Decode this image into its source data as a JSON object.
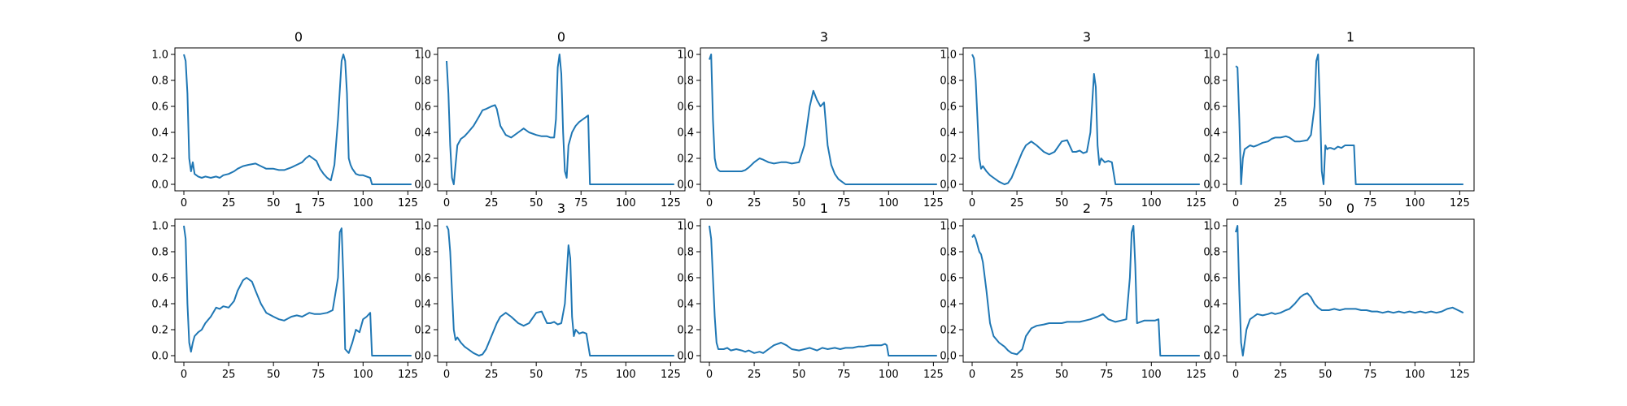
{
  "chart_data": [
    {
      "type": "line",
      "title": "0",
      "xlim": [
        0,
        127
      ],
      "ylim": [
        0,
        1
      ],
      "xticks": [
        0,
        25,
        50,
        75,
        100,
        125
      ],
      "yticks": [
        0.0,
        0.2,
        0.4,
        0.6,
        0.8,
        1.0
      ],
      "x": [
        0,
        1,
        2,
        3,
        4,
        5,
        6,
        8,
        10,
        12,
        15,
        18,
        20,
        22,
        25,
        28,
        30,
        33,
        36,
        40,
        43,
        46,
        50,
        53,
        56,
        60,
        63,
        66,
        68,
        70,
        72,
        74,
        76,
        78,
        80,
        82,
        84,
        86,
        88,
        89,
        90,
        91,
        92,
        93,
        94,
        95,
        96,
        98,
        100,
        102,
        104,
        105,
        106,
        110,
        115,
        120,
        127
      ],
      "values": [
        1.0,
        0.95,
        0.7,
        0.2,
        0.1,
        0.17,
        0.08,
        0.06,
        0.05,
        0.06,
        0.05,
        0.06,
        0.05,
        0.07,
        0.08,
        0.1,
        0.12,
        0.14,
        0.15,
        0.16,
        0.14,
        0.12,
        0.12,
        0.11,
        0.11,
        0.13,
        0.15,
        0.17,
        0.2,
        0.22,
        0.2,
        0.18,
        0.12,
        0.08,
        0.05,
        0.03,
        0.15,
        0.5,
        0.95,
        1.0,
        0.95,
        0.7,
        0.2,
        0.15,
        0.12,
        0.1,
        0.08,
        0.07,
        0.07,
        0.06,
        0.05,
        0.0,
        0.0,
        0.0,
        0.0,
        0.0,
        0.0
      ]
    },
    {
      "type": "line",
      "title": "0",
      "xlim": [
        0,
        127
      ],
      "ylim": [
        0,
        1
      ],
      "xticks": [
        0,
        25,
        50,
        75,
        100,
        125
      ],
      "yticks": [
        0.0,
        0.2,
        0.4,
        0.6,
        0.8,
        1.0
      ],
      "x": [
        0,
        1,
        2,
        3,
        4,
        5,
        6,
        8,
        10,
        12,
        15,
        18,
        20,
        22,
        25,
        27,
        28,
        30,
        33,
        36,
        40,
        43,
        46,
        50,
        53,
        56,
        58,
        60,
        61,
        62,
        63,
        64,
        65,
        66,
        67,
        68,
        70,
        72,
        74,
        76,
        78,
        79,
        80,
        85,
        90,
        100,
        110,
        120,
        127
      ],
      "values": [
        0.95,
        0.7,
        0.3,
        0.05,
        0.0,
        0.15,
        0.3,
        0.35,
        0.37,
        0.4,
        0.45,
        0.52,
        0.57,
        0.58,
        0.6,
        0.61,
        0.58,
        0.45,
        0.38,
        0.36,
        0.4,
        0.43,
        0.4,
        0.38,
        0.37,
        0.37,
        0.36,
        0.36,
        0.5,
        0.9,
        1.0,
        0.85,
        0.4,
        0.1,
        0.05,
        0.3,
        0.4,
        0.45,
        0.48,
        0.5,
        0.52,
        0.53,
        0.0,
        0.0,
        0.0,
        0.0,
        0.0,
        0.0,
        0.0
      ]
    },
    {
      "type": "line",
      "title": "3",
      "xlim": [
        0,
        127
      ],
      "ylim": [
        0,
        1
      ],
      "xticks": [
        0,
        25,
        50,
        75,
        100,
        125
      ],
      "yticks": [
        0.0,
        0.2,
        0.4,
        0.6,
        0.8,
        1.0
      ],
      "x": [
        0,
        1,
        2,
        3,
        4,
        5,
        6,
        8,
        10,
        12,
        15,
        18,
        20,
        22,
        25,
        28,
        30,
        33,
        36,
        40,
        43,
        46,
        50,
        53,
        56,
        58,
        60,
        62,
        64,
        66,
        68,
        70,
        72,
        74,
        76,
        78,
        80,
        85,
        90,
        100,
        110,
        120,
        127
      ],
      "values": [
        0.96,
        1.0,
        0.5,
        0.2,
        0.13,
        0.11,
        0.1,
        0.1,
        0.1,
        0.1,
        0.1,
        0.1,
        0.11,
        0.13,
        0.17,
        0.2,
        0.19,
        0.17,
        0.16,
        0.17,
        0.17,
        0.16,
        0.17,
        0.3,
        0.6,
        0.72,
        0.65,
        0.6,
        0.63,
        0.3,
        0.15,
        0.08,
        0.04,
        0.02,
        0.0,
        0.0,
        0.0,
        0.0,
        0.0,
        0.0,
        0.0,
        0.0,
        0.0
      ]
    },
    {
      "type": "line",
      "title": "3",
      "xlim": [
        0,
        127
      ],
      "ylim": [
        0,
        1
      ],
      "xticks": [
        0,
        25,
        50,
        75,
        100,
        125
      ],
      "yticks": [
        0.0,
        0.2,
        0.4,
        0.6,
        0.8,
        1.0
      ],
      "x": [
        0,
        1,
        2,
        3,
        4,
        5,
        6,
        8,
        10,
        12,
        15,
        18,
        20,
        22,
        25,
        28,
        30,
        33,
        36,
        40,
        43,
        46,
        50,
        53,
        56,
        58,
        60,
        62,
        64,
        66,
        68,
        69,
        70,
        71,
        72,
        74,
        76,
        78,
        80,
        82,
        85,
        90,
        100,
        110,
        120,
        127
      ],
      "values": [
        1.0,
        0.97,
        0.8,
        0.5,
        0.2,
        0.12,
        0.14,
        0.1,
        0.07,
        0.05,
        0.02,
        0.0,
        0.01,
        0.05,
        0.15,
        0.25,
        0.3,
        0.33,
        0.3,
        0.25,
        0.23,
        0.25,
        0.33,
        0.34,
        0.25,
        0.25,
        0.26,
        0.24,
        0.25,
        0.4,
        0.85,
        0.75,
        0.3,
        0.15,
        0.2,
        0.17,
        0.18,
        0.17,
        0.0,
        0.0,
        0.0,
        0.0,
        0.0,
        0.0,
        0.0,
        0.0
      ]
    },
    {
      "type": "line",
      "title": "1",
      "xlim": [
        0,
        127
      ],
      "ylim": [
        0,
        1
      ],
      "xticks": [
        0,
        25,
        50,
        75,
        100,
        125
      ],
      "yticks": [
        0.0,
        0.2,
        0.4,
        0.6,
        0.8,
        1.0
      ],
      "x": [
        0,
        1,
        2,
        3,
        4,
        5,
        6,
        8,
        10,
        12,
        15,
        18,
        20,
        22,
        25,
        28,
        30,
        33,
        36,
        40,
        42,
        44,
        45,
        46,
        47,
        48,
        49,
        50,
        51,
        52,
        53,
        55,
        57,
        59,
        61,
        63,
        65,
        66,
        67,
        70,
        80,
        90,
        100,
        110,
        120,
        127
      ],
      "values": [
        0.91,
        0.9,
        0.5,
        0.0,
        0.2,
        0.27,
        0.28,
        0.3,
        0.29,
        0.3,
        0.32,
        0.33,
        0.35,
        0.36,
        0.36,
        0.37,
        0.36,
        0.33,
        0.33,
        0.34,
        0.38,
        0.6,
        0.95,
        1.0,
        0.6,
        0.1,
        0.0,
        0.3,
        0.27,
        0.28,
        0.28,
        0.27,
        0.29,
        0.28,
        0.3,
        0.3,
        0.3,
        0.3,
        0.0,
        0.0,
        0.0,
        0.0,
        0.0,
        0.0,
        0.0,
        0.0
      ]
    },
    {
      "type": "line",
      "title": "1",
      "xlim": [
        0,
        127
      ],
      "ylim": [
        0,
        1
      ],
      "xticks": [
        0,
        25,
        50,
        75,
        100,
        125
      ],
      "yticks": [
        0.0,
        0.2,
        0.4,
        0.6,
        0.8,
        1.0
      ],
      "x": [
        0,
        1,
        2,
        3,
        4,
        5,
        6,
        8,
        10,
        12,
        15,
        18,
        20,
        22,
        25,
        28,
        30,
        33,
        35,
        38,
        40,
        43,
        46,
        50,
        53,
        56,
        60,
        63,
        66,
        70,
        73,
        76,
        80,
        83,
        86,
        87,
        88,
        89,
        90,
        92,
        94,
        96,
        98,
        100,
        102,
        104,
        105,
        106,
        110,
        115,
        120,
        127
      ],
      "values": [
        1.0,
        0.9,
        0.4,
        0.1,
        0.03,
        0.1,
        0.15,
        0.18,
        0.2,
        0.25,
        0.3,
        0.37,
        0.36,
        0.38,
        0.37,
        0.42,
        0.5,
        0.58,
        0.6,
        0.57,
        0.5,
        0.4,
        0.33,
        0.3,
        0.28,
        0.27,
        0.3,
        0.31,
        0.3,
        0.33,
        0.32,
        0.32,
        0.33,
        0.35,
        0.6,
        0.95,
        0.98,
        0.6,
        0.05,
        0.02,
        0.1,
        0.2,
        0.18,
        0.28,
        0.3,
        0.33,
        0.0,
        0.0,
        0.0,
        0.0,
        0.0,
        0.0
      ]
    },
    {
      "type": "line",
      "title": "3",
      "xlim": [
        0,
        127
      ],
      "ylim": [
        0,
        1
      ],
      "xticks": [
        0,
        25,
        50,
        75,
        100,
        125
      ],
      "yticks": [
        0.0,
        0.2,
        0.4,
        0.6,
        0.8,
        1.0
      ],
      "x": [
        0,
        1,
        2,
        3,
        4,
        5,
        6,
        8,
        10,
        12,
        15,
        18,
        20,
        22,
        25,
        28,
        30,
        33,
        36,
        40,
        43,
        46,
        50,
        53,
        56,
        58,
        60,
        62,
        64,
        66,
        68,
        69,
        70,
        71,
        72,
        74,
        76,
        78,
        80,
        82,
        85,
        90,
        100,
        110,
        120,
        127
      ],
      "values": [
        1.0,
        0.97,
        0.8,
        0.5,
        0.2,
        0.12,
        0.14,
        0.1,
        0.07,
        0.05,
        0.02,
        0.0,
        0.01,
        0.05,
        0.15,
        0.25,
        0.3,
        0.33,
        0.3,
        0.25,
        0.23,
        0.25,
        0.33,
        0.34,
        0.25,
        0.25,
        0.26,
        0.24,
        0.25,
        0.4,
        0.85,
        0.75,
        0.3,
        0.15,
        0.2,
        0.17,
        0.18,
        0.17,
        0.0,
        0.0,
        0.0,
        0.0,
        0.0,
        0.0,
        0.0,
        0.0
      ]
    },
    {
      "type": "line",
      "title": "1",
      "xlim": [
        0,
        127
      ],
      "ylim": [
        0,
        1
      ],
      "xticks": [
        0,
        25,
        50,
        75,
        100,
        125
      ],
      "yticks": [
        0.0,
        0.2,
        0.4,
        0.6,
        0.8,
        1.0
      ],
      "x": [
        0,
        1,
        2,
        3,
        4,
        5,
        6,
        8,
        10,
        12,
        15,
        18,
        20,
        22,
        25,
        28,
        30,
        33,
        36,
        40,
        43,
        46,
        50,
        53,
        56,
        60,
        63,
        66,
        70,
        73,
        76,
        80,
        83,
        86,
        90,
        93,
        96,
        98,
        99,
        100,
        105,
        110,
        120,
        127
      ],
      "values": [
        1.0,
        0.9,
        0.6,
        0.3,
        0.1,
        0.05,
        0.05,
        0.05,
        0.06,
        0.04,
        0.05,
        0.04,
        0.03,
        0.04,
        0.02,
        0.03,
        0.02,
        0.05,
        0.08,
        0.1,
        0.08,
        0.05,
        0.04,
        0.05,
        0.06,
        0.04,
        0.06,
        0.05,
        0.06,
        0.05,
        0.06,
        0.06,
        0.07,
        0.07,
        0.08,
        0.08,
        0.08,
        0.09,
        0.08,
        0.0,
        0.0,
        0.0,
        0.0,
        0.0
      ]
    },
    {
      "type": "line",
      "title": "2",
      "xlim": [
        0,
        127
      ],
      "ylim": [
        0,
        1
      ],
      "xticks": [
        0,
        25,
        50,
        75,
        100,
        125
      ],
      "yticks": [
        0.0,
        0.2,
        0.4,
        0.6,
        0.8,
        1.0
      ],
      "x": [
        0,
        1,
        2,
        3,
        4,
        5,
        6,
        8,
        10,
        12,
        15,
        18,
        20,
        22,
        25,
        28,
        30,
        33,
        36,
        40,
        43,
        46,
        50,
        53,
        56,
        60,
        63,
        66,
        70,
        73,
        76,
        80,
        83,
        86,
        88,
        89,
        90,
        91,
        92,
        94,
        96,
        98,
        100,
        102,
        104,
        105,
        106,
        110,
        115,
        120,
        127
      ],
      "values": [
        0.91,
        0.93,
        0.9,
        0.85,
        0.8,
        0.78,
        0.72,
        0.5,
        0.25,
        0.15,
        0.1,
        0.07,
        0.04,
        0.02,
        0.01,
        0.05,
        0.15,
        0.21,
        0.23,
        0.24,
        0.25,
        0.25,
        0.25,
        0.26,
        0.26,
        0.26,
        0.27,
        0.28,
        0.3,
        0.32,
        0.28,
        0.26,
        0.27,
        0.28,
        0.6,
        0.95,
        1.0,
        0.7,
        0.25,
        0.26,
        0.27,
        0.27,
        0.27,
        0.27,
        0.28,
        0.0,
        0.0,
        0.0,
        0.0,
        0.0,
        0.0
      ]
    },
    {
      "type": "line",
      "title": "0",
      "xlim": [
        0,
        127
      ],
      "ylim": [
        0,
        1
      ],
      "xticks": [
        0,
        25,
        50,
        75,
        100,
        125
      ],
      "yticks": [
        0.0,
        0.2,
        0.4,
        0.6,
        0.8,
        1.0
      ],
      "x": [
        0,
        1,
        2,
        3,
        4,
        5,
        6,
        8,
        10,
        12,
        15,
        18,
        20,
        22,
        25,
        28,
        30,
        33,
        36,
        38,
        40,
        42,
        44,
        46,
        48,
        50,
        52,
        55,
        58,
        61,
        64,
        67,
        70,
        73,
        76,
        79,
        82,
        85,
        88,
        91,
        94,
        97,
        100,
        103,
        106,
        109,
        112,
        115,
        118,
        121,
        124,
        127
      ],
      "values": [
        0.95,
        1.0,
        0.5,
        0.1,
        0.0,
        0.1,
        0.2,
        0.28,
        0.3,
        0.32,
        0.31,
        0.32,
        0.33,
        0.32,
        0.33,
        0.35,
        0.36,
        0.4,
        0.45,
        0.47,
        0.48,
        0.45,
        0.4,
        0.37,
        0.35,
        0.35,
        0.35,
        0.36,
        0.35,
        0.36,
        0.36,
        0.36,
        0.35,
        0.35,
        0.34,
        0.34,
        0.33,
        0.34,
        0.33,
        0.34,
        0.33,
        0.34,
        0.33,
        0.34,
        0.33,
        0.34,
        0.33,
        0.34,
        0.36,
        0.37,
        0.35,
        0.33
      ]
    }
  ]
}
